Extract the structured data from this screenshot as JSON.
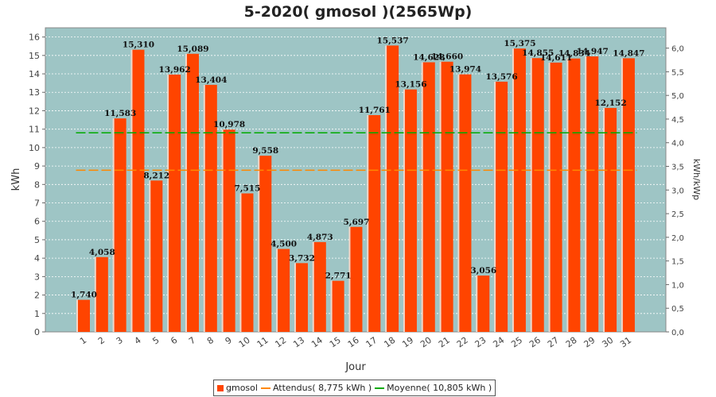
{
  "chart_data": {
    "type": "bar",
    "title": "5-2020( gmosol )(2565Wp)",
    "xlabel": "Jour",
    "ylabel": "kWh",
    "ylabel_right": "kWh/kWp",
    "ylim": [
      0,
      16.5
    ],
    "ylim_right": [
      0,
      6.43
    ],
    "yticks": [
      0,
      1,
      2,
      3,
      4,
      5,
      6,
      7,
      8,
      9,
      10,
      11,
      12,
      13,
      14,
      15,
      16
    ],
    "yticks_right": [
      "0,0",
      "0,5",
      "1,0",
      "1,5",
      "2,0",
      "2,5",
      "3,0",
      "3,5",
      "4,0",
      "4,5",
      "5,0",
      "5,5",
      "6,0"
    ],
    "categories": [
      "1",
      "2",
      "3",
      "4",
      "5",
      "6",
      "7",
      "8",
      "9",
      "10",
      "11",
      "12",
      "13",
      "14",
      "15",
      "16",
      "17",
      "18",
      "19",
      "20",
      "21",
      "22",
      "23",
      "24",
      "25",
      "26",
      "27",
      "28",
      "29",
      "30",
      "31"
    ],
    "series": [
      {
        "name": "gmosol",
        "color": "#ff4400",
        "values": [
          1.74,
          4.058,
          11.583,
          15.31,
          8.212,
          13.962,
          15.089,
          13.404,
          10.978,
          7.515,
          9.558,
          4.5,
          3.732,
          4.873,
          2.771,
          5.697,
          11.761,
          15.537,
          13.156,
          14.628,
          14.66,
          13.974,
          3.056,
          13.576,
          15.375,
          14.855,
          14.611,
          14.834,
          14.947,
          12.152,
          14.847
        ],
        "labels": [
          "1,740",
          "4,058",
          "11,583",
          "15,310",
          "8,212",
          "13,962",
          "15,089",
          "13,404",
          "10,978",
          "7,515",
          "9,558",
          "4,500",
          "3,732",
          "4,873",
          "2,771",
          "5,697",
          "11,761",
          "15,537",
          "13,156",
          "14,628",
          "14,660",
          "13,974",
          "3,056",
          "13,576",
          "15,375",
          "14,855",
          "14,611",
          "14,834",
          "14,947",
          "12,152",
          "14,847"
        ]
      }
    ],
    "reference_lines": [
      {
        "name": "Attendus",
        "value": 8.775,
        "color": "#ff8800"
      },
      {
        "name": "Moyenne",
        "value": 10.805,
        "color": "#00aa00"
      }
    ],
    "grid": true,
    "legend_position": "bottom",
    "plot_background": "#9ec5c5"
  },
  "legend": {
    "items": [
      {
        "label": "gmosol",
        "kind": "box",
        "color": "#ff4400"
      },
      {
        "label": "Attendus( 8,775 kWh )",
        "kind": "line",
        "color": "#ff8800"
      },
      {
        "label": "Moyenne( 10,805 kWh )",
        "kind": "line",
        "color": "#00aa00"
      }
    ]
  }
}
